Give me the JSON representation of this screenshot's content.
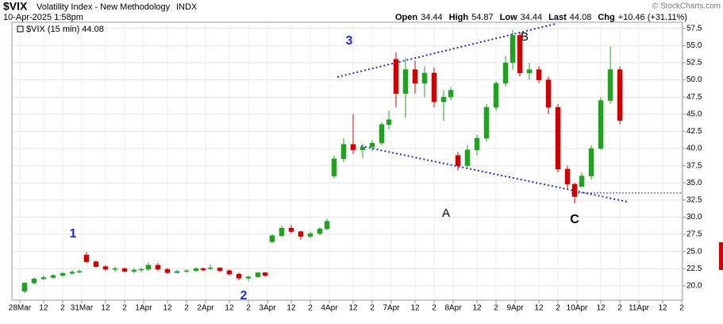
{
  "chart_data": {
    "type": "candlestick",
    "title": "$VIX",
    "subtitle": "Volatility Index - New Methodology",
    "exchange": "INDX",
    "date": "10-Apr-2025 1:58pm",
    "watermark": "© StockCharts.com",
    "quote": [
      {
        "label": "Open",
        "value": 34.44
      },
      {
        "label": "High",
        "value": 54.87
      },
      {
        "label": "Low",
        "value": 34.44
      },
      {
        "label": "Last",
        "value": 44.08
      },
      {
        "label": "Chg",
        "value": "+10.46 (+31.11%)"
      }
    ],
    "legend": "$VIX (15 min) 44.08",
    "annotations": [
      "3",
      "1",
      "2",
      "A",
      "B",
      "C"
    ],
    "up_color": "#22a022",
    "down_color": "#d00000",
    "grid": true,
    "xlim": [
      -0.83,
      69.58
    ],
    "ylim": [
      17.9,
      58.4
    ],
    "yticks": [
      {
        "value": 20,
        "label": "20.0"
      },
      {
        "value": 22.5,
        "label": "22.5"
      },
      {
        "value": 25,
        "label": "25.0"
      },
      {
        "value": 27.5,
        "label": "27.5"
      },
      {
        "value": 30,
        "label": "30.0"
      },
      {
        "value": 32.5,
        "label": "32.5"
      },
      {
        "value": 35,
        "label": "35.0"
      },
      {
        "value": 37.5,
        "label": "37.5"
      },
      {
        "value": 40,
        "label": "40.0"
      },
      {
        "value": 42.5,
        "label": "42.5"
      },
      {
        "value": 45,
        "label": "45.0"
      },
      {
        "value": 47.5,
        "label": "47.5"
      },
      {
        "value": 50,
        "label": "50.0"
      },
      {
        "value": 52.5,
        "label": "52.5"
      },
      {
        "value": 55,
        "label": "55.0"
      },
      {
        "value": 57.5,
        "label": "57.5"
      }
    ],
    "xticks": [
      {
        "value": 0,
        "label": "28Mar"
      },
      {
        "value": 2.5,
        "label": "12"
      },
      {
        "value": 4.5,
        "label": "2"
      },
      {
        "value": 6.5,
        "label": "31Mar"
      },
      {
        "value": 9,
        "label": "12"
      },
      {
        "value": 11,
        "label": "2"
      },
      {
        "value": 13,
        "label": "1Apr"
      },
      {
        "value": 15.5,
        "label": "12"
      },
      {
        "value": 17.5,
        "label": "2"
      },
      {
        "value": 19.5,
        "label": "2Apr"
      },
      {
        "value": 22,
        "label": "12"
      },
      {
        "value": 24,
        "label": "2"
      },
      {
        "value": 26,
        "label": "3Apr"
      },
      {
        "value": 28.5,
        "label": "12"
      },
      {
        "value": 30.5,
        "label": "2"
      },
      {
        "value": 32.5,
        "label": "4Apr"
      },
      {
        "value": 35,
        "label": "12"
      },
      {
        "value": 37,
        "label": "2"
      },
      {
        "value": 39,
        "label": "7Apr"
      },
      {
        "value": 41.5,
        "label": "12"
      },
      {
        "value": 43.5,
        "label": "2"
      },
      {
        "value": 45.5,
        "label": "8Apr"
      },
      {
        "value": 48,
        "label": "12"
      },
      {
        "value": 50,
        "label": "2"
      },
      {
        "value": 52,
        "label": "9Apr"
      },
      {
        "value": 54.5,
        "label": "12"
      },
      {
        "value": 56.5,
        "label": "2"
      },
      {
        "value": 58.5,
        "label": "10Apr"
      },
      {
        "value": 61,
        "label": "12"
      },
      {
        "value": 63,
        "label": "2"
      },
      {
        "value": 65,
        "label": "11Apr"
      },
      {
        "value": 67.5,
        "label": "12"
      },
      {
        "value": 69.5,
        "label": "2"
      }
    ],
    "x": [
      0.5,
      1.5,
      2.5,
      3.5,
      4.5,
      5.5,
      6.25,
      7,
      8,
      9,
      10,
      11,
      12,
      12.75,
      13.5,
      14.5,
      15.5,
      16.5,
      17.5,
      18.5,
      19.25,
      20,
      21,
      22,
      23,
      24,
      25,
      25.75,
      26.5,
      27.5,
      28.5,
      29.5,
      30.5,
      31.5,
      32.25,
      33,
      34,
      35,
      36,
      37,
      38,
      38.75,
      39.5,
      40.5,
      41.5,
      42.5,
      43.5,
      44.5,
      45.25,
      46,
      47,
      48,
      49,
      50,
      51,
      51.75,
      52.5,
      53.5,
      54.5,
      55.5,
      56.5,
      57.5,
      58.25,
      59,
      60,
      61,
      62,
      63
    ],
    "open": [
      19.2,
      20.4,
      21.0,
      21.2,
      21.5,
      21.8,
      22.0,
      24.5,
      23.5,
      22.8,
      22.4,
      22.5,
      22.1,
      22.3,
      22.4,
      23.0,
      22.4,
      21.9,
      22.1,
      22.2,
      22.5,
      22.5,
      22.6,
      22.2,
      21.7,
      21.1,
      21.3,
      21.9,
      26.4,
      27.3,
      28.4,
      27.9,
      27.2,
      27.6,
      28.3,
      36.0,
      38.5,
      40.6,
      39.8,
      40.2,
      40.8,
      43.5,
      53.0,
      48.0,
      51.5,
      49.5,
      51.0,
      46.8,
      47.5,
      39.0,
      37.5,
      39.8,
      41.5,
      46.0,
      49.5,
      52.5,
      56.5,
      51.0,
      51.5,
      50.0,
      46.0,
      37.0,
      34.8,
      34.44,
      36.0,
      40.0,
      47.0,
      51.5
    ],
    "high": [
      20.5,
      21.2,
      21.5,
      21.7,
      22.0,
      22.3,
      22.4,
      24.9,
      23.7,
      23.0,
      22.8,
      22.7,
      22.6,
      22.6,
      23.4,
      23.3,
      22.6,
      22.3,
      22.4,
      22.7,
      22.7,
      23.1,
      22.7,
      22.4,
      21.9,
      21.5,
      22.0,
      22.0,
      27.5,
      28.8,
      28.9,
      28.0,
      27.9,
      28.5,
      29.8,
      39.0,
      41.5,
      45.0,
      40.7,
      41.2,
      43.8,
      45.5,
      54.0,
      53.2,
      52.8,
      52.0,
      51.8,
      48.5,
      49.0,
      39.5,
      40.5,
      42.0,
      46.5,
      49.8,
      53.5,
      57.3,
      57.0,
      52.5,
      52.0,
      50.5,
      46.5,
      37.5,
      35.0,
      36.5,
      40.5,
      47.5,
      54.87,
      52.0
    ],
    "low": [
      18.9,
      20.2,
      20.8,
      21.0,
      21.3,
      21.6,
      21.8,
      23.3,
      22.6,
      22.2,
      22.0,
      21.9,
      21.8,
      22.0,
      22.2,
      22.2,
      21.7,
      21.8,
      21.9,
      22.0,
      22.1,
      22.3,
      22.0,
      21.5,
      20.8,
      20.7,
      21.2,
      21.3,
      26.2,
      27.1,
      27.6,
      26.7,
      26.9,
      27.4,
      28.1,
      35.6,
      38.0,
      39.2,
      38.6,
      39.6,
      40.5,
      42.8,
      46.0,
      44.5,
      48.0,
      47.5,
      46.0,
      44.0,
      47.0,
      36.8,
      37.0,
      39.0,
      41.0,
      45.5,
      49.0,
      51.5,
      50.5,
      50.0,
      49.5,
      45.0,
      36.5,
      34.0,
      32.0,
      34.44,
      35.5,
      39.8,
      46.5,
      43.5
    ],
    "close": [
      20.4,
      21.0,
      21.2,
      21.5,
      21.8,
      22.0,
      22.1,
      23.5,
      22.8,
      22.4,
      22.5,
      22.1,
      22.3,
      22.4,
      23.0,
      22.4,
      21.9,
      22.1,
      22.2,
      22.5,
      22.3,
      22.6,
      22.2,
      21.7,
      21.1,
      21.3,
      21.9,
      21.5,
      27.3,
      28.4,
      27.9,
      27.2,
      27.6,
      28.3,
      29.4,
      38.5,
      40.6,
      39.8,
      40.2,
      40.8,
      43.5,
      44.2,
      48.0,
      51.5,
      49.5,
      51.0,
      46.8,
      47.5,
      48.5,
      37.5,
      39.8,
      41.5,
      46.0,
      49.5,
      52.5,
      56.5,
      51.0,
      51.5,
      50.0,
      46.0,
      37.0,
      34.8,
      33.0,
      36.0,
      40.0,
      47.0,
      51.5,
      44.08
    ]
  }
}
